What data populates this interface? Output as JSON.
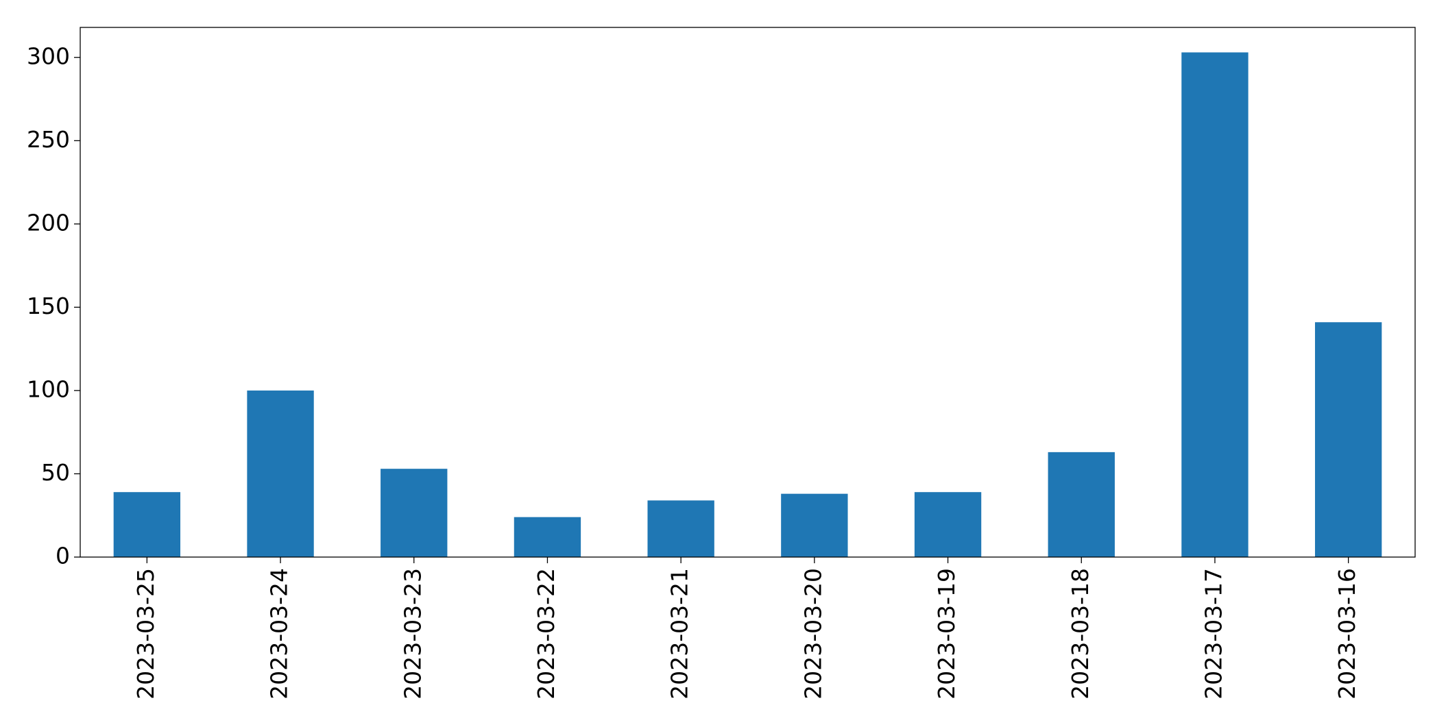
{
  "chart_data": {
    "type": "bar",
    "categories": [
      "2023-03-25",
      "2023-03-24",
      "2023-03-23",
      "2023-03-22",
      "2023-03-21",
      "2023-03-20",
      "2023-03-19",
      "2023-03-18",
      "2023-03-17",
      "2023-03-16"
    ],
    "values": [
      39,
      100,
      53,
      24,
      34,
      38,
      39,
      63,
      303,
      141
    ],
    "color": "#1f77b4",
    "ylim": [
      0,
      318
    ],
    "yticks": [
      0,
      50,
      100,
      150,
      200,
      250,
      300
    ],
    "grid": false
  }
}
